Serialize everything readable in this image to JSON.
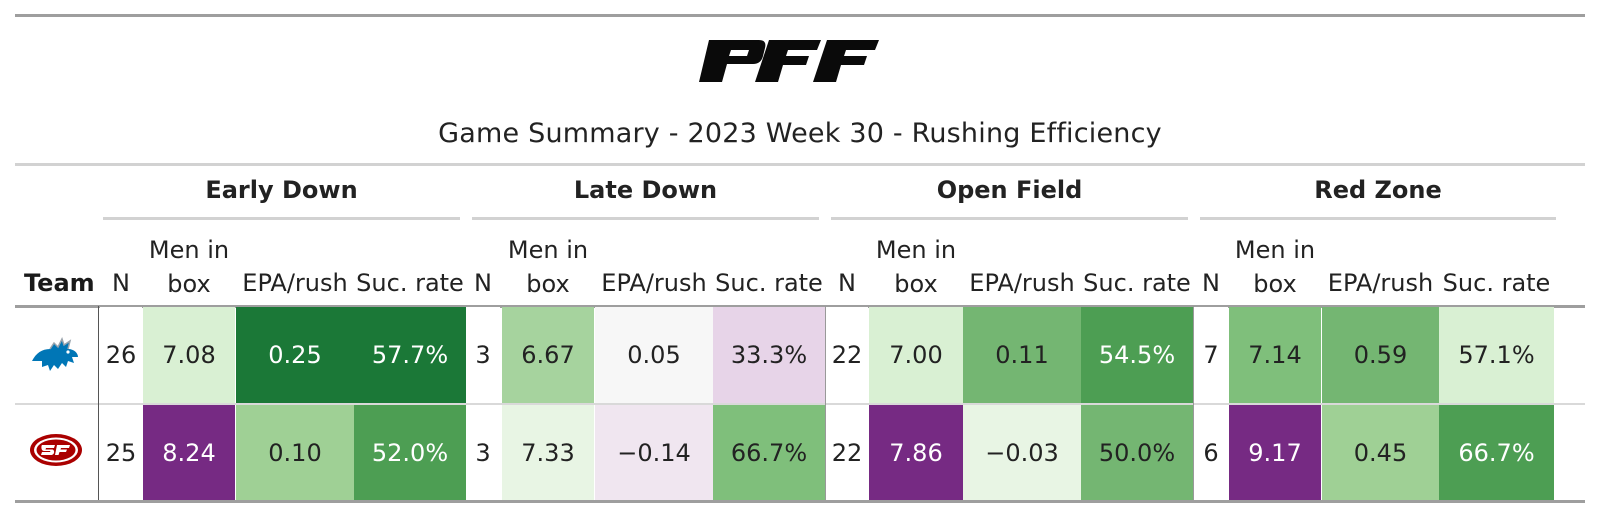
{
  "brand_logo": "PFF",
  "title": "Game Summary - 2023 Week 30 - Rushing Efficiency",
  "team_header": "Team",
  "groups": [
    "Early Down",
    "Late Down",
    "Open Field",
    "Red Zone"
  ],
  "columns": {
    "n": "N",
    "men_in_box_line1": "Men in",
    "men_in_box_line2": "box",
    "epa": "EPA/rush",
    "suc": "Suc. rate"
  },
  "teams": [
    {
      "team_icon": "detroit-lions-logo-icon",
      "early": {
        "n": "26",
        "box": "7.08",
        "epa": "0.25",
        "suc": "57.7%"
      },
      "late": {
        "n": "3",
        "box": "6.67",
        "epa": "0.05",
        "suc": "33.3%"
      },
      "open": {
        "n": "22",
        "box": "7.00",
        "epa": "0.11",
        "suc": "54.5%"
      },
      "red": {
        "n": "7",
        "box": "7.14",
        "epa": "0.59",
        "suc": "57.1%"
      }
    },
    {
      "team_icon": "san-francisco-49ers-logo-icon",
      "early": {
        "n": "25",
        "box": "8.24",
        "epa": "0.10",
        "suc": "52.0%"
      },
      "late": {
        "n": "3",
        "box": "7.33",
        "epa": "−0.14",
        "suc": "66.7%"
      },
      "open": {
        "n": "22",
        "box": "7.86",
        "epa": "−0.03",
        "suc": "50.0%"
      },
      "red": {
        "n": "6",
        "box": "9.17",
        "epa": "0.45",
        "suc": "66.7%"
      }
    }
  ],
  "colors": {
    "dark_green": "#1b7837",
    "mid_green": "#4d9e53",
    "green": "#74b672",
    "light_green": "#a6d39e",
    "pale_green": "#d9f0d3",
    "very_pale_green": "#e8f5e4",
    "neutral": "#f7f7f7",
    "pale_purple": "#e7d4e8",
    "very_pale_purple": "#f0e6f0",
    "purple": "#762a83"
  }
}
